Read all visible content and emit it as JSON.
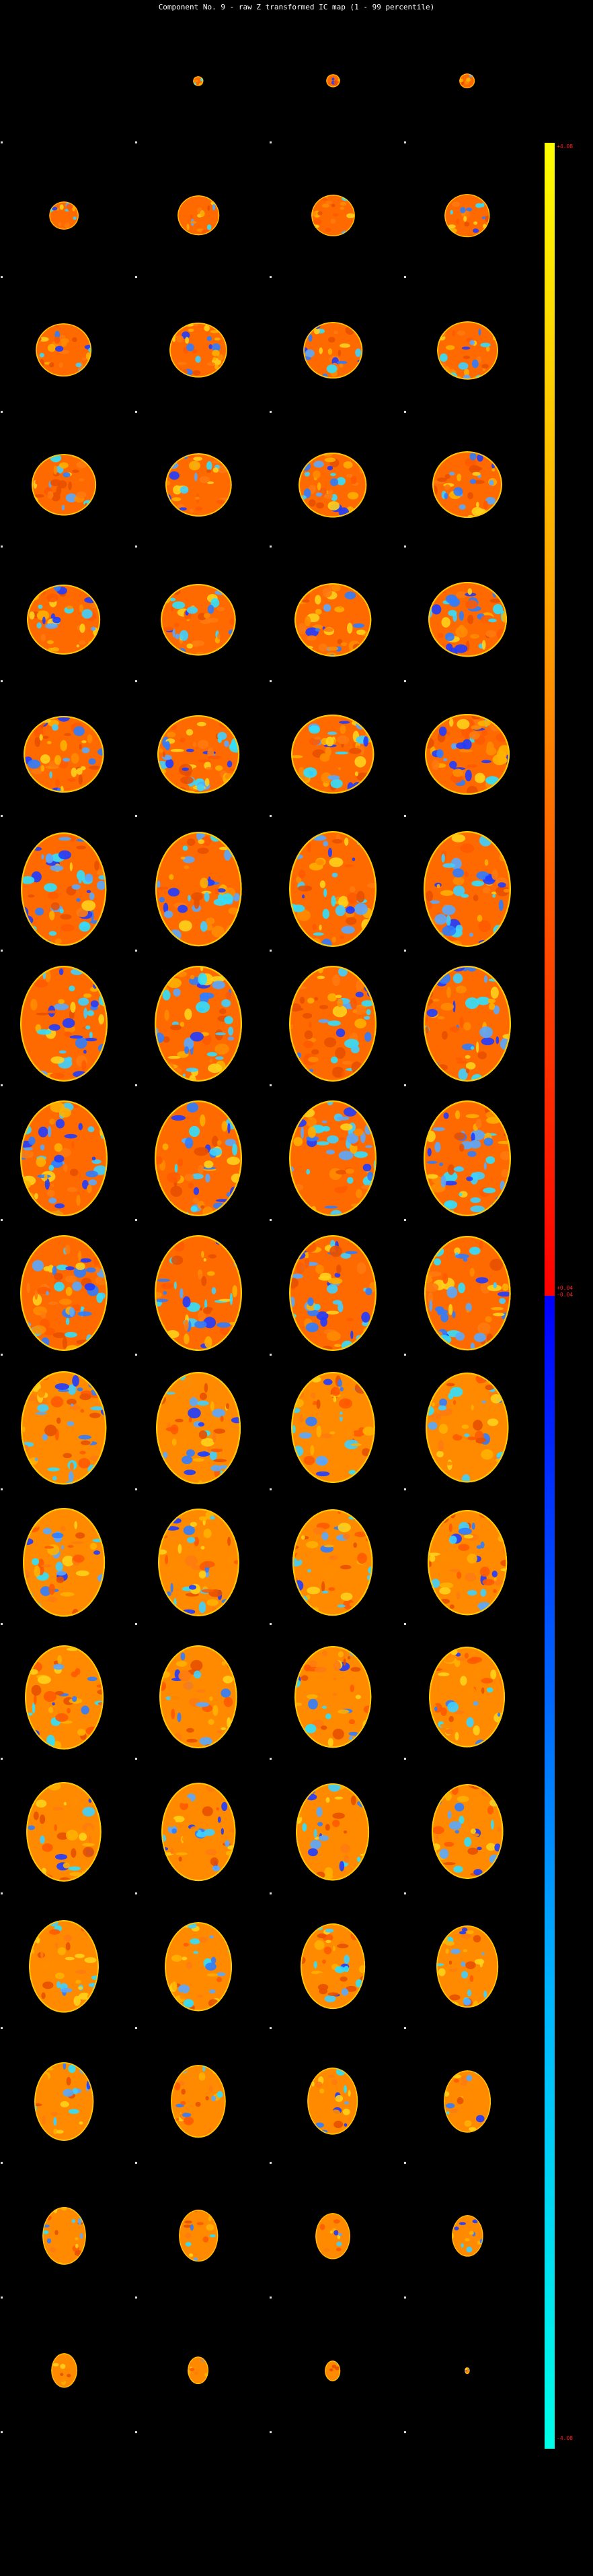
{
  "figure": {
    "title": "Component No. 9 - raw Z transformed IC map (1 - 99 percentile)"
  },
  "colorbar": {
    "max_label": "+4.08",
    "mid_pos_label": "+0.04",
    "mid_neg_label": "-0.04",
    "min_label": "-4.08",
    "colors": [
      "#ffff00",
      "#ff9a00",
      "#ff0000",
      "#0000ff",
      "#00b4ff",
      "#00ffe8"
    ]
  },
  "grid": {
    "rows": 18,
    "cols": 4,
    "slice_scale": [
      [
        0.0,
        0.12,
        0.16,
        0.18
      ],
      [
        0.34,
        0.48,
        0.5,
        0.52
      ],
      [
        0.64,
        0.66,
        0.68,
        0.7
      ],
      [
        0.74,
        0.76,
        0.78,
        0.8
      ],
      [
        0.84,
        0.86,
        0.88,
        0.9
      ],
      [
        0.92,
        0.94,
        0.95,
        0.97
      ],
      [
        0.98,
        0.99,
        1.0,
        1.0
      ],
      [
        1.0,
        1.0,
        1.0,
        1.0
      ],
      [
        1.0,
        1.0,
        1.0,
        1.0
      ],
      [
        1.0,
        1.0,
        1.0,
        0.99
      ],
      [
        0.98,
        0.97,
        0.96,
        0.95
      ],
      [
        0.94,
        0.93,
        0.92,
        0.91
      ],
      [
        0.9,
        0.89,
        0.88,
        0.87
      ],
      [
        0.86,
        0.85,
        0.84,
        0.82
      ],
      [
        0.8,
        0.77,
        0.74,
        0.71
      ],
      [
        0.68,
        0.63,
        0.58,
        0.54
      ],
      [
        0.5,
        0.45,
        0.4,
        0.36
      ],
      [
        0.3,
        0.24,
        0.18,
        0.06
      ]
    ]
  }
}
